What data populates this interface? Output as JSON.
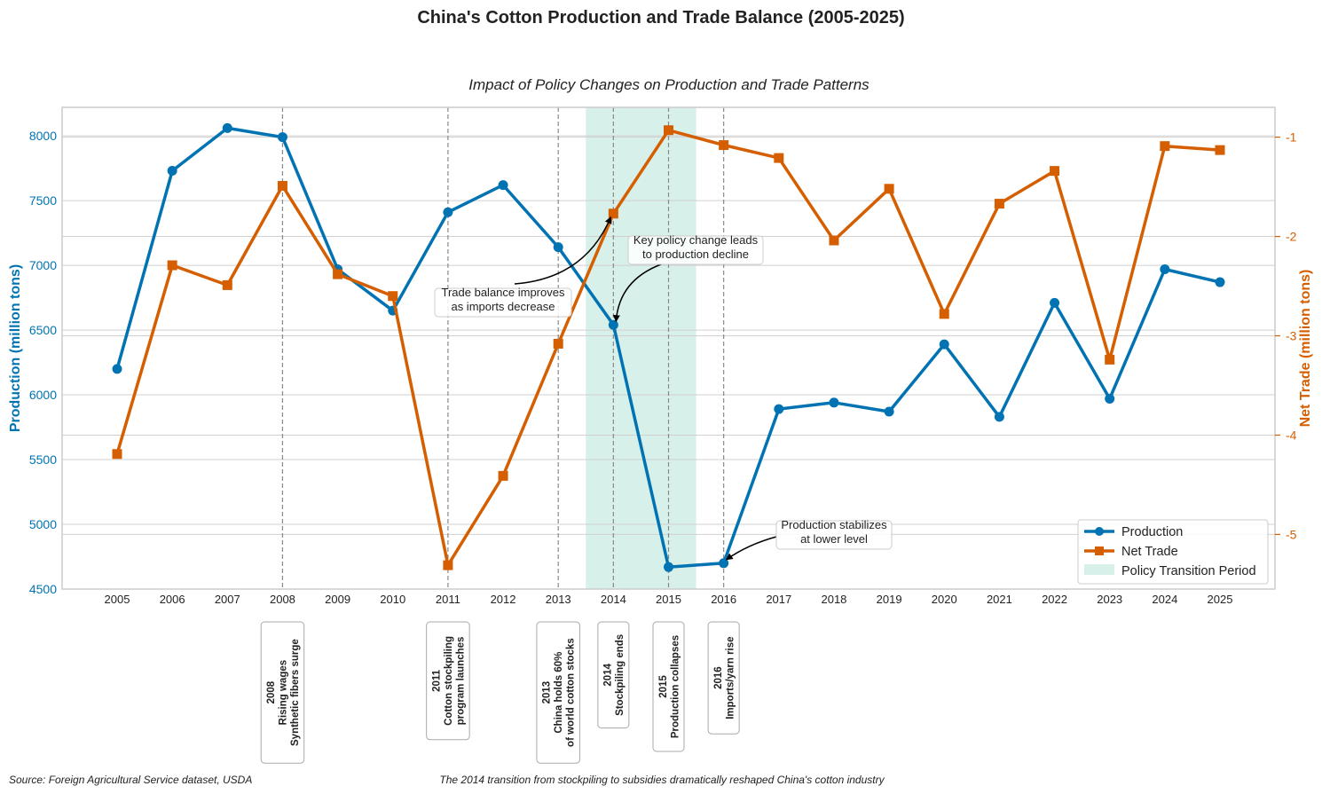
{
  "chart_data": {
    "type": "line",
    "title": "China's Cotton Production and Trade Balance (2005-2025)",
    "subtitle": "Impact of Policy Changes on Production and Trade Patterns",
    "x": [
      "2005",
      "2006",
      "2007",
      "2008",
      "2009",
      "2010",
      "2011",
      "2012",
      "2013",
      "2014",
      "2015",
      "2016",
      "2017",
      "2018",
      "2019",
      "2020",
      "2021",
      "2022",
      "2023",
      "2024",
      "2025"
    ],
    "ylabel": "Production (million tons)",
    "y2label": "Net Trade (million tons)",
    "ylim": [
      4500,
      8220
    ],
    "y2lim": [
      -5.55,
      -0.7
    ],
    "yticks": [
      4500,
      5000,
      5500,
      6000,
      6500,
      7000,
      7500,
      8000
    ],
    "y2ticks": [
      -5,
      -4,
      -3,
      -2,
      -1
    ],
    "grid": true,
    "series": [
      {
        "name": "Production",
        "axis": "left",
        "color": "#0173b2",
        "marker": "circle",
        "values": [
          6200,
          7730,
          8060,
          7990,
          6970,
          6650,
          7410,
          7620,
          7140,
          6540,
          4670,
          4700,
          5890,
          5940,
          5870,
          6390,
          5830,
          6710,
          5970,
          6970,
          6870
        ]
      },
      {
        "name": "Net Trade",
        "axis": "right",
        "color": "#d55e00",
        "marker": "square",
        "values": [
          -4.19,
          -2.29,
          -2.49,
          -1.49,
          -2.38,
          -2.6,
          -5.31,
          -4.41,
          -3.08,
          -1.77,
          -0.93,
          -1.08,
          -1.21,
          -2.04,
          -1.52,
          -2.78,
          -1.67,
          -1.34,
          -3.24,
          -1.09,
          -1.13
        ]
      }
    ],
    "shaded_region": {
      "label": "Policy Transition Period",
      "from": 2013.5,
      "to": 2015.5,
      "color": "#7fcdbb"
    },
    "event_lines": [
      {
        "year": 2008,
        "lines": [
          "2008",
          "Rising wages",
          "Synthetic fibers surge"
        ]
      },
      {
        "year": 2011,
        "lines": [
          "2011",
          "Cotton stockpiling",
          "program launches"
        ]
      },
      {
        "year": 2013,
        "lines": [
          "2013",
          "China holds 60%",
          "of world cotton stocks"
        ]
      },
      {
        "year": 2014,
        "lines": [
          "2014",
          "Stockpiling ends"
        ]
      },
      {
        "year": 2015,
        "lines": [
          "2015",
          "Production collapses"
        ]
      },
      {
        "year": 2016,
        "lines": [
          "2016",
          "Imports/yarn rise"
        ]
      }
    ],
    "annotations": [
      {
        "lines": [
          "Trade balance improves",
          "as imports decrease"
        ],
        "target_year": 2014,
        "target_series": "Net Trade"
      },
      {
        "lines": [
          "Key policy change leads",
          "to production decline"
        ],
        "target_year": 2014,
        "target_series": "Production"
      },
      {
        "lines": [
          "Production stabilizes",
          "at lower level"
        ],
        "target_year": 2016,
        "target_series": "Production"
      }
    ],
    "legend": {
      "position": "bottom-right",
      "entries": [
        "Production",
        "Net Trade",
        "Policy Transition Period"
      ]
    }
  },
  "footer": {
    "source": "Source: Foreign Agricultural Service dataset, USDA",
    "caption": "The 2014 transition from stockpiling to subsidies dramatically reshaped China's cotton industry"
  }
}
